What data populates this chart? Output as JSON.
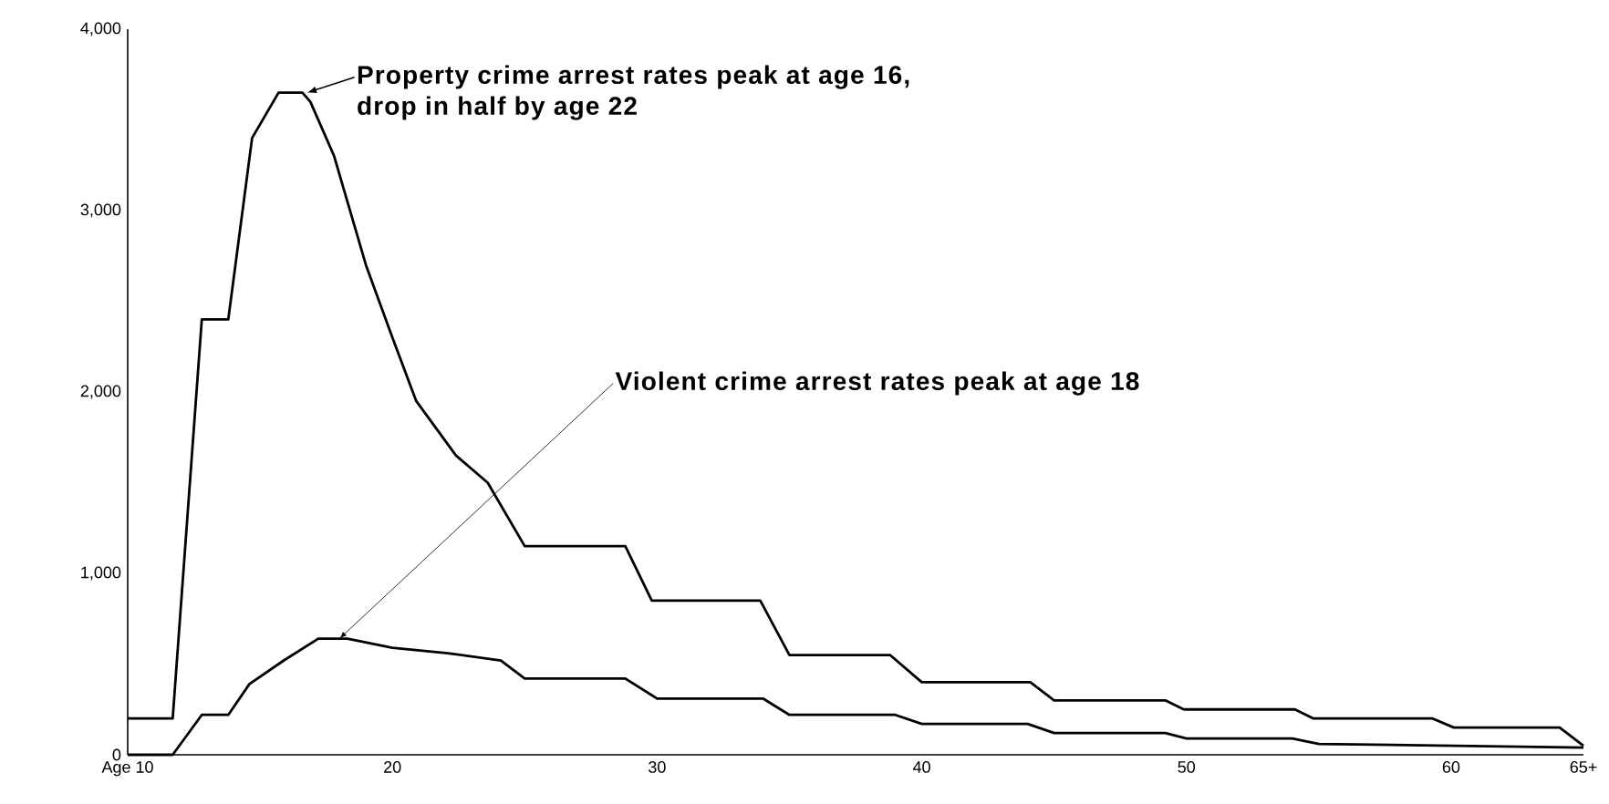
{
  "chart_data": {
    "type": "line",
    "xlim": [
      10,
      65
    ],
    "ylim": [
      0,
      4000
    ],
    "xticks": [
      {
        "value": 10,
        "label": "Age 10"
      },
      20,
      30,
      40,
      50,
      60,
      {
        "value": 65,
        "label": "65+"
      }
    ],
    "yticks": [
      0,
      {
        "value": 1000,
        "label": "1,000"
      },
      {
        "value": 2000,
        "label": "2,000"
      },
      {
        "value": 3000,
        "label": "3,000"
      },
      {
        "value": 4000,
        "label": "4,000"
      }
    ],
    "grid": false,
    "series": [
      {
        "color": "#000000",
        "x": [
          10,
          11.7,
          12.8,
          13.8,
          14.7,
          15.7,
          16.6,
          16.9,
          17.8,
          19,
          20,
          20.9,
          22.4,
          23.6,
          25,
          28.8,
          29.8,
          33.9,
          35,
          38.8,
          40,
          44.1,
          45,
          49.2,
          49.9,
          54.1,
          54.8,
          59.3,
          60.1,
          64.1,
          65
        ],
        "values": [
          200,
          200,
          2400,
          2400,
          3400,
          3650,
          3650,
          3600,
          3300,
          2700,
          2300,
          1950,
          1650,
          1500,
          1150,
          1150,
          850,
          850,
          550,
          550,
          400,
          400,
          300,
          300,
          250,
          250,
          200,
          200,
          150,
          150,
          50
        ]
      },
      {
        "color": "#000000",
        "x": [
          10,
          11.7,
          12.8,
          13.8,
          14.6,
          15.9,
          17.2,
          18.3,
          20,
          22.1,
          24.1,
          25,
          28.8,
          30,
          34,
          35,
          39,
          40,
          44,
          45,
          49.2,
          50,
          54,
          55,
          65
        ],
        "values": [
          0,
          0,
          220,
          220,
          390,
          520,
          640,
          640,
          590,
          560,
          520,
          420,
          420,
          310,
          310,
          220,
          220,
          170,
          170,
          120,
          120,
          90,
          90,
          60,
          40
        ]
      }
    ],
    "annotations": [
      {
        "text": "Property crime arrest rates peak at age 16, drop in half by age 22",
        "x": 16.5,
        "y": 3650
      },
      {
        "text": "Violent crime arrest rates peak at age 18",
        "x": 18,
        "y": 640
      }
    ]
  }
}
